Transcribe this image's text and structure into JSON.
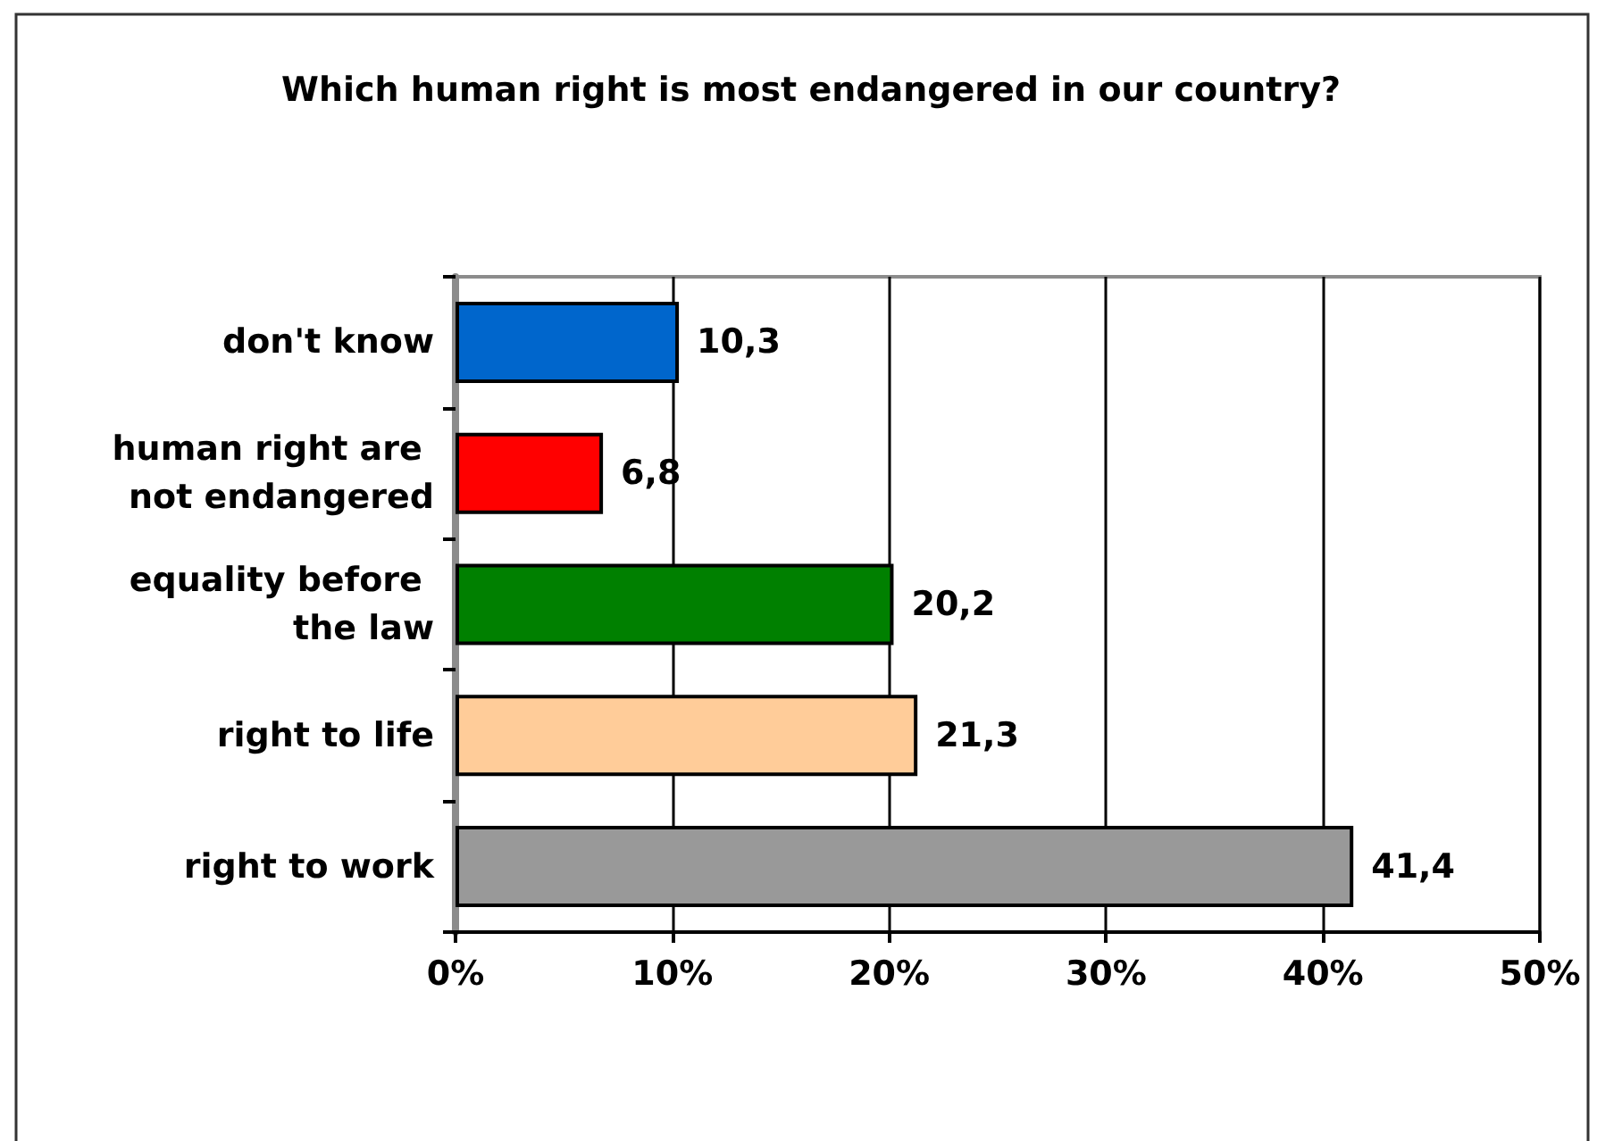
{
  "chart_data": {
    "type": "bar",
    "orientation": "horizontal",
    "title": "Which human right is most endangered in our country?",
    "categories": [
      "don't know",
      "human right are not endangered",
      "equality before the law",
      "right to life",
      "right to work"
    ],
    "values": [
      10.3,
      6.8,
      20.2,
      21.3,
      41.4
    ],
    "colors": [
      "#0066cc",
      "#ff0000",
      "#008000",
      "#ffcc99",
      "#999999"
    ],
    "value_labels": [
      "10,3",
      "6,8",
      "20,2",
      "21,3",
      "41,4"
    ],
    "xlim": [
      0,
      50
    ],
    "xticks": [
      {
        "value": 0,
        "label": "0%"
      },
      {
        "value": 10,
        "label": "10%"
      },
      {
        "value": 20,
        "label": "20%"
      },
      {
        "value": 30,
        "label": "30%"
      },
      {
        "value": 40,
        "label": "40%"
      },
      {
        "value": 50,
        "label": "50%"
      }
    ],
    "grid": "x"
  }
}
